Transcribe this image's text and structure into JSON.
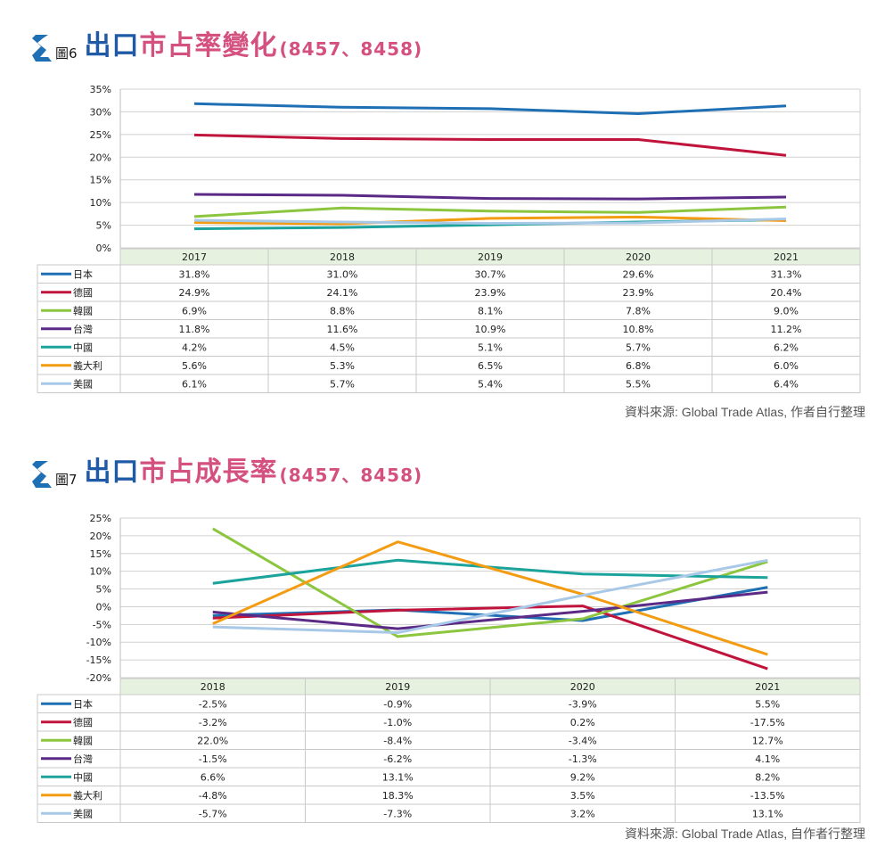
{
  "figures": [
    {
      "fig_label": "圖6",
      "title_part1": "出口",
      "title_part2": "市占率變化",
      "title_part3": "(8457、8458)",
      "source": "資料來源: Global Trade Atlas, 作者自行整理",
      "chart_data": {
        "type": "line",
        "categories": [
          "2017",
          "2018",
          "2019",
          "2020",
          "2021"
        ],
        "ylim": [
          0,
          35
        ],
        "yticks": [
          0,
          5,
          10,
          15,
          20,
          25,
          30,
          35
        ],
        "ytick_labels": [
          "0%",
          "5%",
          "10%",
          "15%",
          "20%",
          "25%",
          "30%",
          "35%"
        ],
        "grid": true,
        "series": [
          {
            "name": "日本",
            "color": "#1f6fb5",
            "values": [
              31.8,
              31.0,
              30.7,
              29.6,
              31.3
            ],
            "labels": [
              "31.8%",
              "31.0%",
              "30.7%",
              "29.6%",
              "31.3%"
            ]
          },
          {
            "name": "德國",
            "color": "#c0143c",
            "values": [
              24.9,
              24.1,
              23.9,
              23.9,
              20.4
            ],
            "labels": [
              "24.9%",
              "24.1%",
              "23.9%",
              "23.9%",
              "20.4%"
            ]
          },
          {
            "name": "韓國",
            "color": "#8cc63f",
            "values": [
              6.9,
              8.8,
              8.1,
              7.8,
              9.0
            ],
            "labels": [
              "6.9%",
              "8.8%",
              "8.1%",
              "7.8%",
              "9.0%"
            ]
          },
          {
            "name": "台灣",
            "color": "#5b2a86",
            "values": [
              11.8,
              11.6,
              10.9,
              10.8,
              11.2
            ],
            "labels": [
              "11.8%",
              "11.6%",
              "10.9%",
              "10.8%",
              "11.2%"
            ]
          },
          {
            "name": "中國",
            "color": "#1ba39c",
            "values": [
              4.2,
              4.5,
              5.1,
              5.7,
              6.2
            ],
            "labels": [
              "4.2%",
              "4.5%",
              "5.1%",
              "5.7%",
              "6.2%"
            ]
          },
          {
            "name": "義大利",
            "color": "#f39c12",
            "values": [
              5.6,
              5.3,
              6.5,
              6.8,
              6.0
            ],
            "labels": [
              "5.6%",
              "5.3%",
              "6.5%",
              "6.8%",
              "6.0%"
            ]
          },
          {
            "name": "美國",
            "color": "#a8c8e8",
            "values": [
              6.1,
              5.7,
              5.4,
              5.5,
              6.4
            ],
            "labels": [
              "6.1%",
              "5.7%",
              "5.4%",
              "5.5%",
              "6.4%"
            ]
          }
        ]
      }
    },
    {
      "fig_label": "圖7",
      "title_part1": "出口",
      "title_part2": "市占成長率",
      "title_part3": "(8457、8458)",
      "source": "資料來源: Global Trade Atlas, 自作者行整理",
      "chart_data": {
        "type": "line",
        "categories": [
          "2018",
          "2019",
          "2020",
          "2021"
        ],
        "ylim": [
          -20,
          25
        ],
        "yticks": [
          -20,
          -15,
          -10,
          -5,
          0,
          5,
          10,
          15,
          20,
          25
        ],
        "ytick_labels": [
          "-20%",
          "-15%",
          "-10%",
          "-5%",
          "0%",
          "5%",
          "10%",
          "15%",
          "20%",
          "25%"
        ],
        "grid": true,
        "series": [
          {
            "name": "日本",
            "color": "#1f6fb5",
            "values": [
              -2.5,
              -0.9,
              -3.9,
              5.5
            ],
            "labels": [
              "-2.5%",
              "-0.9%",
              "-3.9%",
              "5.5%"
            ]
          },
          {
            "name": "德國",
            "color": "#c0143c",
            "values": [
              -3.2,
              -1.0,
              0.2,
              -17.5
            ],
            "labels": [
              "-3.2%",
              "-1.0%",
              "0.2%",
              "-17.5%"
            ]
          },
          {
            "name": "韓國",
            "color": "#8cc63f",
            "values": [
              22.0,
              -8.4,
              -3.4,
              12.7
            ],
            "labels": [
              "22.0%",
              "-8.4%",
              "-3.4%",
              "12.7%"
            ]
          },
          {
            "name": "台灣",
            "color": "#5b2a86",
            "values": [
              -1.5,
              -6.2,
              -1.3,
              4.1
            ],
            "labels": [
              "-1.5%",
              "-6.2%",
              "-1.3%",
              "4.1%"
            ]
          },
          {
            "name": "中國",
            "color": "#1ba39c",
            "values": [
              6.6,
              13.1,
              9.2,
              8.2
            ],
            "labels": [
              "6.6%",
              "13.1%",
              "9.2%",
              "8.2%"
            ]
          },
          {
            "name": "義大利",
            "color": "#f39c12",
            "values": [
              -4.8,
              18.3,
              3.5,
              -13.5
            ],
            "labels": [
              "-4.8%",
              "18.3%",
              "3.5%",
              "-13.5%"
            ]
          },
          {
            "name": "美國",
            "color": "#a8c8e8",
            "values": [
              -5.7,
              -7.3,
              3.2,
              13.1
            ],
            "labels": [
              "-5.7%",
              "-7.3%",
              "3.2%",
              "13.1%"
            ]
          }
        ]
      }
    }
  ]
}
